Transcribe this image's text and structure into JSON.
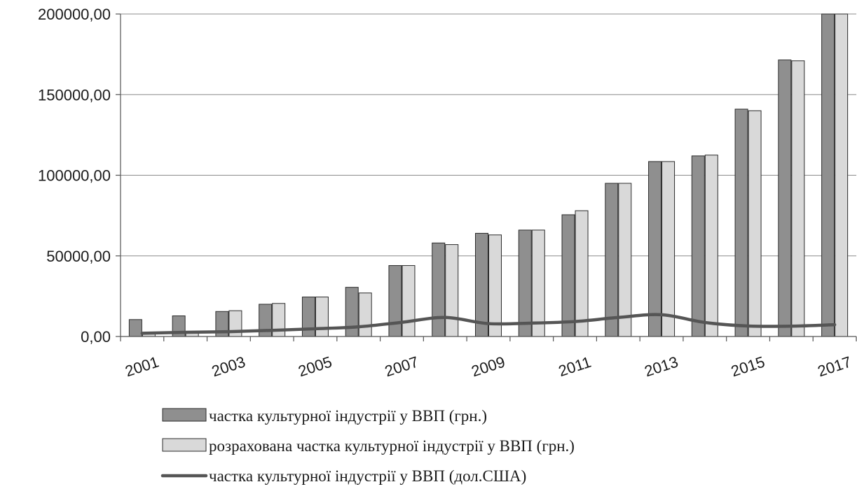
{
  "chart_data": {
    "type": "bar",
    "x": [
      "2001",
      "2002",
      "2003",
      "2004",
      "2005",
      "2006",
      "2007",
      "2008",
      "2009",
      "2010",
      "2011",
      "2012",
      "2013",
      "2014",
      "2015",
      "2016",
      "2017"
    ],
    "x_tick_labels": [
      "2001",
      "2003",
      "2005",
      "2007",
      "2009",
      "2011",
      "2013",
      "2015",
      "2017"
    ],
    "y_tick_labels": [
      "0,00",
      "50000,00",
      "100000,00",
      "150000,00",
      "200000,00"
    ],
    "ylim": [
      0,
      200000
    ],
    "grid": true,
    "legend_position": "bottom",
    "series": [
      {
        "name": "частка культурної індустрії у ВВП (грн.)",
        "type": "bar",
        "color": "#8f8f8f",
        "values": [
          10500,
          12800,
          15500,
          20000,
          24500,
          30500,
          44000,
          58000,
          64000,
          66000,
          75500,
          95000,
          108500,
          112000,
          141000,
          171500,
          200000
        ]
      },
      {
        "name": "розрахована частка культурної індустрії у ВВП (грн.)",
        "type": "bar",
        "color": "#d9d9d9",
        "values": [
          2500,
          2500,
          16000,
          20500,
          24500,
          27000,
          44000,
          57000,
          63000,
          66000,
          78000,
          95000,
          108500,
          112500,
          140000,
          171000,
          200000
        ]
      },
      {
        "name": "частка культурної індустрії у ВВП (дол.США)",
        "type": "line",
        "color": "#555555",
        "values": [
          2000,
          2600,
          3000,
          3800,
          4800,
          6000,
          8800,
          11800,
          8000,
          8300,
          9300,
          11800,
          13500,
          8700,
          6500,
          6400,
          7300
        ]
      }
    ]
  }
}
